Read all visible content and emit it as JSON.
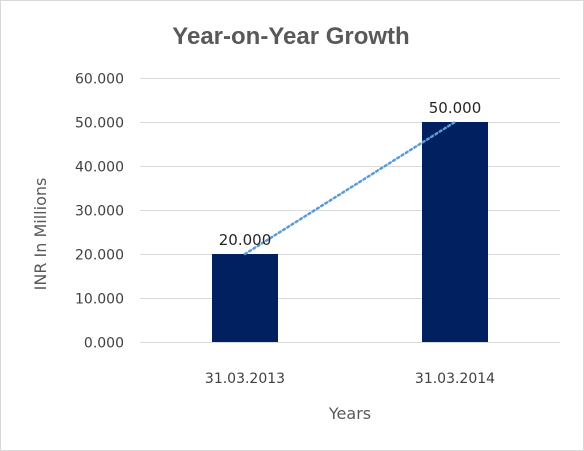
{
  "chart_data": {
    "type": "bar",
    "title": "Year-on-Year Growth",
    "xlabel": "Years",
    "ylabel": "INR In Millions",
    "categories": [
      "31.03.2013",
      "31.03.2014"
    ],
    "values": [
      20,
      50
    ],
    "data_labels": [
      "20.000",
      "50.000"
    ],
    "ylim": [
      0,
      60
    ],
    "y_ticks": [
      {
        "value": 0,
        "label": "0.000"
      },
      {
        "value": 10,
        "label": "10.000"
      },
      {
        "value": 20,
        "label": "20.000"
      },
      {
        "value": 30,
        "label": "30.000"
      },
      {
        "value": 40,
        "label": "40.000"
      },
      {
        "value": 50,
        "label": "50.000"
      },
      {
        "value": 60,
        "label": "60.000"
      }
    ],
    "grid": true,
    "legend": "none",
    "trendline": "linear",
    "colors": {
      "bar": "#002060",
      "trendline": "#5B9BD5",
      "grid": "#d9d9d9",
      "title": "#595959",
      "axis_text": "#404040"
    }
  }
}
